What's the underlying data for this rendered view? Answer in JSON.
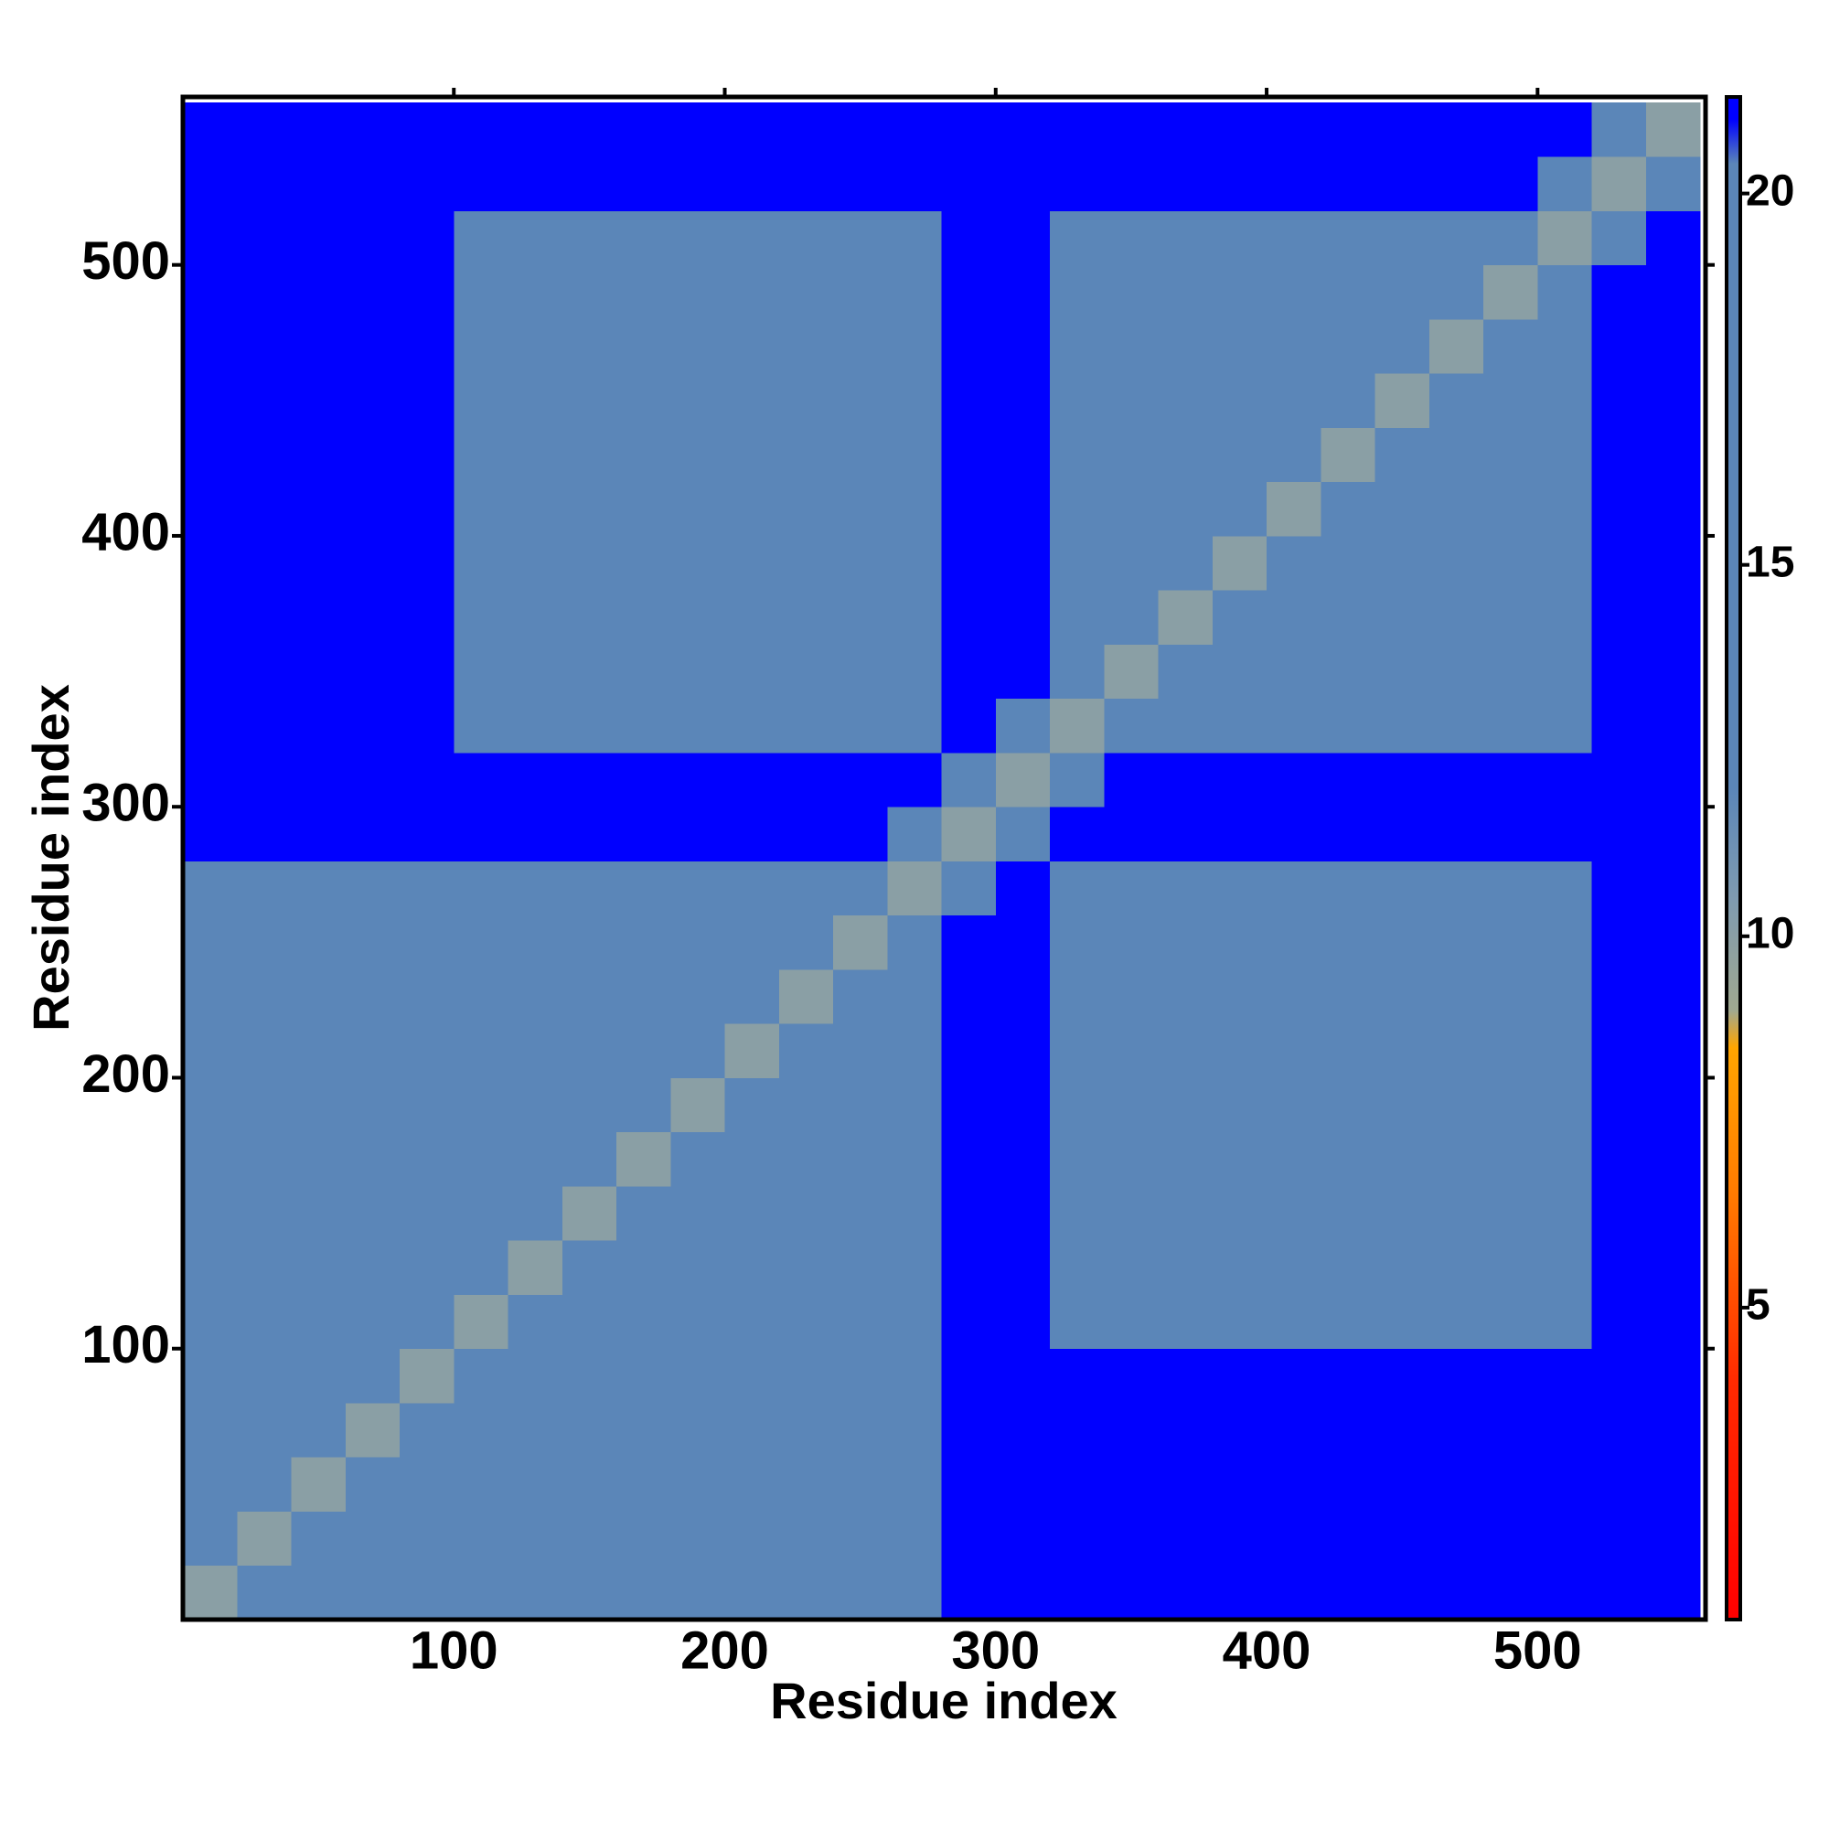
{
  "chart_data": {
    "type": "heatmap",
    "xlabel": "Residue index",
    "ylabel": "Residue index",
    "xlim": [
      0,
      562
    ],
    "ylim": [
      0,
      562
    ],
    "xticks": [
      100,
      200,
      300,
      400,
      500
    ],
    "yticks": [
      100,
      200,
      300,
      400,
      500
    ],
    "bins": [
      0,
      20,
      40,
      60,
      80,
      100,
      120,
      140,
      160,
      180,
      200,
      220,
      240,
      260,
      280,
      300,
      320,
      340,
      360,
      380,
      400,
      420,
      440,
      460,
      480,
      500,
      520,
      540,
      560
    ],
    "clim": [
      0.8,
      21.3
    ],
    "cticks": [
      5,
      10,
      15,
      20
    ],
    "colorscale": [
      [
        0.8,
        "#ff0000"
      ],
      [
        4,
        "#ff2a00"
      ],
      [
        6.5,
        "#ff7a00"
      ],
      [
        8.5,
        "#ffa500"
      ],
      [
        9,
        "#a0a890"
      ],
      [
        10.5,
        "#7f9bb0"
      ],
      [
        12,
        "#5b86b8"
      ],
      [
        20.4,
        "#5b86b8"
      ],
      [
        21,
        "#0000ff"
      ],
      [
        21.3,
        "#0000ff"
      ]
    ],
    "z": [
      [
        10,
        14,
        16,
        16,
        16,
        19,
        19,
        19,
        19,
        19,
        19,
        19,
        19,
        19,
        21,
        21,
        21,
        21,
        21,
        21,
        21,
        21,
        21,
        21,
        21,
        21,
        21,
        21
      ],
      [
        14,
        10,
        14,
        16,
        16,
        19,
        19,
        19,
        19,
        19,
        19,
        19,
        19,
        19,
        21,
        21,
        21,
        21,
        21,
        21,
        21,
        21,
        21,
        21,
        21,
        21,
        21,
        21
      ],
      [
        16,
        14,
        10,
        14,
        16,
        19,
        19,
        19,
        19,
        19,
        19,
        19,
        19,
        19,
        21,
        21,
        21,
        21,
        21,
        21,
        21,
        21,
        21,
        21,
        21,
        21,
        21,
        21
      ],
      [
        16,
        16,
        14,
        10,
        14,
        19,
        19,
        19,
        19,
        19,
        19,
        19,
        19,
        19,
        21,
        21,
        21,
        21,
        21,
        21,
        21,
        21,
        21,
        21,
        21,
        21,
        21,
        21
      ],
      [
        16,
        16,
        16,
        14,
        10,
        14,
        19,
        19,
        19,
        19,
        19,
        19,
        19,
        19,
        21,
        21,
        21,
        21,
        21,
        21,
        21,
        21,
        21,
        21,
        21,
        21,
        21,
        21
      ],
      [
        19,
        19,
        19,
        19,
        14,
        10,
        14,
        16,
        16,
        16,
        16,
        16,
        16,
        16,
        21,
        21,
        20,
        20,
        20,
        20,
        20,
        20,
        20,
        20,
        20,
        20,
        21,
        21
      ],
      [
        19,
        19,
        19,
        19,
        19,
        14,
        10,
        14,
        16,
        16,
        16,
        16,
        16,
        16,
        21,
        21,
        20,
        20,
        20,
        20,
        20,
        20,
        20,
        20,
        20,
        20,
        21,
        21
      ],
      [
        19,
        19,
        19,
        19,
        19,
        16,
        14,
        10,
        14,
        16,
        16,
        16,
        16,
        16,
        21,
        21,
        20,
        20,
        20,
        20,
        20,
        20,
        20,
        20,
        20,
        20,
        21,
        21
      ],
      [
        19,
        19,
        19,
        19,
        19,
        16,
        16,
        14,
        10,
        14,
        16,
        16,
        16,
        16,
        21,
        21,
        20,
        20,
        20,
        20,
        20,
        20,
        20,
        20,
        20,
        20,
        21,
        21
      ],
      [
        19,
        19,
        19,
        19,
        19,
        16,
        16,
        16,
        14,
        10,
        14,
        16,
        16,
        16,
        21,
        21,
        20,
        20,
        20,
        20,
        20,
        20,
        20,
        20,
        20,
        20,
        21,
        21
      ],
      [
        19,
        19,
        19,
        19,
        19,
        16,
        16,
        16,
        16,
        14,
        10,
        14,
        16,
        16,
        21,
        21,
        20,
        20,
        20,
        20,
        20,
        20,
        20,
        20,
        20,
        20,
        21,
        21
      ],
      [
        19,
        19,
        19,
        19,
        19,
        16,
        16,
        16,
        16,
        16,
        14,
        10,
        14,
        16,
        21,
        21,
        20,
        20,
        20,
        20,
        20,
        20,
        20,
        20,
        20,
        20,
        21,
        21
      ],
      [
        19,
        19,
        19,
        19,
        19,
        16,
        16,
        16,
        16,
        16,
        16,
        14,
        10,
        14,
        21,
        21,
        20,
        20,
        20,
        20,
        20,
        20,
        20,
        20,
        20,
        20,
        21,
        21
      ],
      [
        19,
        19,
        19,
        19,
        19,
        16,
        16,
        16,
        16,
        16,
        16,
        16,
        14,
        10,
        14,
        21,
        20,
        20,
        20,
        20,
        20,
        20,
        20,
        20,
        20,
        20,
        21,
        21
      ],
      [
        21,
        21,
        21,
        21,
        21,
        21,
        21,
        21,
        21,
        21,
        21,
        21,
        21,
        14,
        10,
        14,
        21,
        21,
        21,
        21,
        21,
        21,
        21,
        21,
        21,
        21,
        21,
        21
      ],
      [
        21,
        21,
        21,
        21,
        21,
        21,
        21,
        21,
        21,
        21,
        21,
        21,
        21,
        21,
        14,
        10,
        14,
        21,
        21,
        21,
        21,
        21,
        21,
        21,
        21,
        21,
        21,
        21
      ],
      [
        21,
        21,
        21,
        21,
        21,
        20,
        20,
        20,
        20,
        20,
        20,
        20,
        20,
        20,
        21,
        14,
        10,
        14,
        16,
        16,
        16,
        16,
        16,
        16,
        16,
        16,
        21,
        21
      ],
      [
        21,
        21,
        21,
        21,
        21,
        20,
        20,
        20,
        20,
        20,
        20,
        20,
        20,
        20,
        21,
        21,
        14,
        10,
        14,
        16,
        16,
        16,
        16,
        16,
        16,
        16,
        21,
        21
      ],
      [
        21,
        21,
        21,
        21,
        21,
        20,
        20,
        20,
        20,
        20,
        20,
        20,
        20,
        20,
        21,
        21,
        16,
        14,
        10,
        14,
        16,
        16,
        16,
        16,
        16,
        16,
        21,
        21
      ],
      [
        21,
        21,
        21,
        21,
        21,
        20,
        20,
        20,
        20,
        20,
        20,
        20,
        20,
        20,
        21,
        21,
        16,
        16,
        14,
        10,
        14,
        16,
        16,
        16,
        16,
        16,
        21,
        21
      ],
      [
        21,
        21,
        21,
        21,
        21,
        20,
        20,
        20,
        20,
        20,
        20,
        20,
        20,
        20,
        21,
        21,
        16,
        16,
        16,
        14,
        10,
        14,
        16,
        16,
        16,
        16,
        21,
        21
      ],
      [
        21,
        21,
        21,
        21,
        21,
        20,
        20,
        20,
        20,
        20,
        20,
        20,
        20,
        20,
        21,
        21,
        16,
        16,
        16,
        16,
        14,
        10,
        14,
        16,
        16,
        16,
        21,
        21
      ],
      [
        21,
        21,
        21,
        21,
        21,
        20,
        20,
        20,
        20,
        20,
        20,
        20,
        20,
        20,
        21,
        21,
        16,
        16,
        16,
        16,
        16,
        14,
        10,
        14,
        16,
        16,
        21,
        21
      ],
      [
        21,
        21,
        21,
        21,
        21,
        20,
        20,
        20,
        20,
        20,
        20,
        20,
        20,
        20,
        21,
        21,
        16,
        16,
        16,
        16,
        16,
        16,
        14,
        10,
        14,
        16,
        21,
        21
      ],
      [
        21,
        21,
        21,
        21,
        21,
        20,
        20,
        20,
        20,
        20,
        20,
        20,
        20,
        20,
        21,
        21,
        16,
        16,
        16,
        16,
        16,
        16,
        16,
        14,
        10,
        14,
        21,
        21
      ],
      [
        21,
        21,
        21,
        21,
        21,
        20,
        20,
        20,
        20,
        20,
        20,
        20,
        20,
        20,
        21,
        21,
        16,
        16,
        16,
        16,
        16,
        16,
        16,
        16,
        14,
        10,
        14,
        21
      ],
      [
        21,
        21,
        21,
        21,
        21,
        21,
        21,
        21,
        21,
        21,
        21,
        21,
        21,
        21,
        21,
        21,
        21,
        21,
        21,
        21,
        21,
        21,
        21,
        21,
        21,
        14,
        10,
        14
      ],
      [
        21,
        21,
        21,
        21,
        21,
        21,
        21,
        21,
        21,
        21,
        21,
        21,
        21,
        21,
        21,
        21,
        21,
        21,
        21,
        21,
        21,
        21,
        21,
        21,
        21,
        21,
        14,
        10
      ]
    ]
  }
}
